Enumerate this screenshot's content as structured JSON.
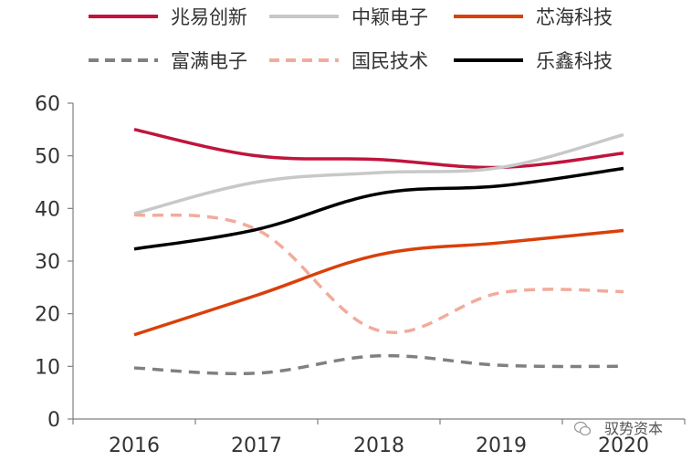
{
  "chart_data": {
    "type": "line",
    "title": "",
    "xlabel": "",
    "ylabel": "",
    "categories": [
      "2016",
      "2017",
      "2018",
      "2019",
      "2020"
    ],
    "ylim": [
      0,
      60
    ],
    "yticks": [
      0,
      10,
      20,
      30,
      40,
      50,
      60
    ],
    "grid": false,
    "legend_position": "top",
    "series": [
      {
        "name": "兆易创新",
        "values": [
          55.0,
          50.0,
          49.3,
          47.8,
          50.5
        ],
        "color": "#c0143c",
        "dash": "solid"
      },
      {
        "name": "中颖电子",
        "values": [
          39.0,
          45.0,
          46.8,
          47.8,
          54.0
        ],
        "color": "#c8c8c8",
        "dash": "solid"
      },
      {
        "name": "芯海科技",
        "values": [
          16.0,
          23.5,
          31.2,
          33.5,
          35.8
        ],
        "color": "#d9400a",
        "dash": "solid"
      },
      {
        "name": "富满电子",
        "values": [
          9.7,
          8.7,
          12.0,
          10.2,
          10.0
        ],
        "color": "#808080",
        "dash": "dashed"
      },
      {
        "name": "国民技术",
        "values": [
          38.8,
          36.0,
          16.8,
          24.0,
          24.2
        ],
        "color": "#f2ab9b",
        "dash": "dashed"
      },
      {
        "name": "乐鑫科技",
        "values": [
          32.3,
          36.0,
          42.8,
          44.3,
          47.6
        ],
        "color": "#000000",
        "dash": "solid"
      }
    ]
  },
  "watermark": {
    "text": "驭势资本",
    "icon": "wechat-icon"
  }
}
